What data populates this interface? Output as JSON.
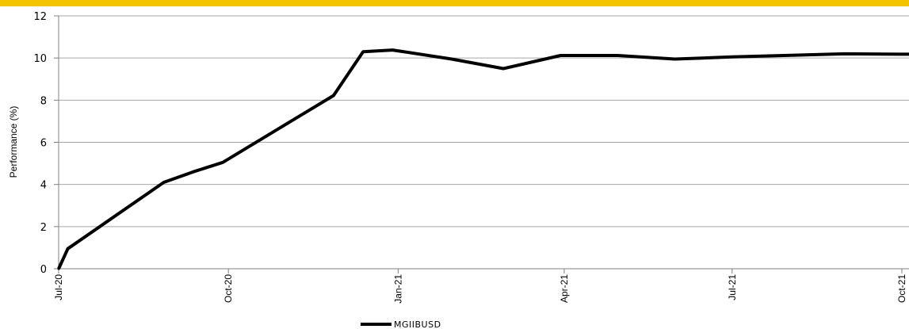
{
  "colors": {
    "accent_bar": "#f5c400",
    "grid": "#a6a6a6",
    "axis": "#808080",
    "line": "#000000"
  },
  "chart_data": {
    "type": "line",
    "title": "",
    "xlabel": "",
    "ylabel": "Performance (%)",
    "ylim": [
      0,
      12
    ],
    "yticks": [
      0,
      2,
      4,
      6,
      8,
      10,
      12
    ],
    "grid": true,
    "legend_position": "bottom",
    "x_start": "2020-07-01",
    "x_end": "2021-10-01",
    "xticks": [
      {
        "date": "2020-07-01",
        "label": "Jul-20"
      },
      {
        "date": "2020-10-01",
        "label": "Oct-20"
      },
      {
        "date": "2021-01-01",
        "label": "Jan-21"
      },
      {
        "date": "2021-04-01",
        "label": "Apr-21"
      },
      {
        "date": "2021-07-01",
        "label": "Jul-21"
      },
      {
        "date": "2021-10-01",
        "label": "Oct-21"
      }
    ],
    "series": [
      {
        "name": "MGIIBUSD",
        "points": [
          {
            "x": "2020-07-01",
            "y": 0.0
          },
          {
            "x": "2020-07-06",
            "y": 0.95
          },
          {
            "x": "2020-08-27",
            "y": 4.1
          },
          {
            "x": "2020-09-12",
            "y": 4.6
          },
          {
            "x": "2020-09-28",
            "y": 5.05
          },
          {
            "x": "2020-11-27",
            "y": 8.22
          },
          {
            "x": "2020-12-13",
            "y": 10.3
          },
          {
            "x": "2020-12-29",
            "y": 10.38
          },
          {
            "x": "2021-01-30",
            "y": 9.95
          },
          {
            "x": "2021-02-27",
            "y": 9.5
          },
          {
            "x": "2021-03-30",
            "y": 10.12
          },
          {
            "x": "2021-04-30",
            "y": 10.12
          },
          {
            "x": "2021-05-31",
            "y": 9.95
          },
          {
            "x": "2021-07-01",
            "y": 10.05
          },
          {
            "x": "2021-08-31",
            "y": 10.2
          },
          {
            "x": "2021-09-30",
            "y": 10.18
          },
          {
            "x": "2021-10-22",
            "y": 10.18
          }
        ]
      }
    ]
  }
}
